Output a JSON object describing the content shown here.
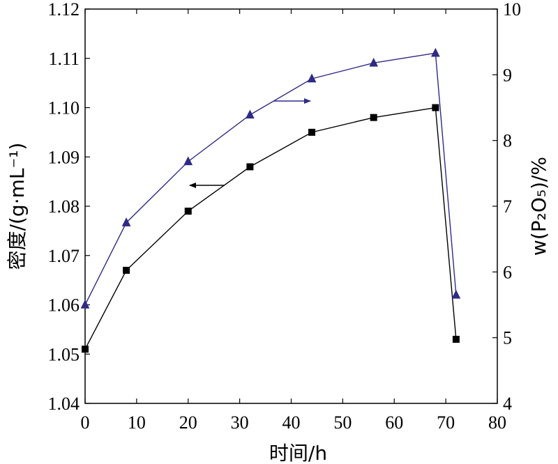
{
  "chart_data": {
    "type": "line",
    "x": [
      0,
      8,
      20,
      32,
      44,
      56,
      68,
      72
    ],
    "xlabel": "时间/h",
    "xlim": [
      0,
      80
    ],
    "xticks": [
      0,
      10,
      20,
      30,
      40,
      50,
      60,
      70,
      80
    ],
    "ylabel_left": "密度/(g·mL⁻¹)",
    "ylim_left": [
      1.04,
      1.12
    ],
    "yticks_left": [
      "1.04",
      "1.05",
      "1.06",
      "1.07",
      "1.08",
      "1.09",
      "1.10",
      "1.11",
      "1.12"
    ],
    "ylabel_right": "w(P₂O₅)/%",
    "ylim_right": [
      4,
      10
    ],
    "yticks_right": [
      "4",
      "5",
      "6",
      "7",
      "8",
      "9",
      "10"
    ],
    "grid": false,
    "series": [
      {
        "axis": "left",
        "marker": "square",
        "color": "#000000",
        "values": [
          1.051,
          1.067,
          1.079,
          1.088,
          1.095,
          1.098,
          1.1,
          1.053
        ],
        "indicator_arrow": "left"
      },
      {
        "axis": "right",
        "marker": "triangle",
        "color": "#2e2a86",
        "values": [
          5.5,
          6.75,
          7.68,
          8.39,
          8.94,
          9.18,
          9.33,
          5.65
        ],
        "indicator_arrow": "right"
      }
    ]
  }
}
